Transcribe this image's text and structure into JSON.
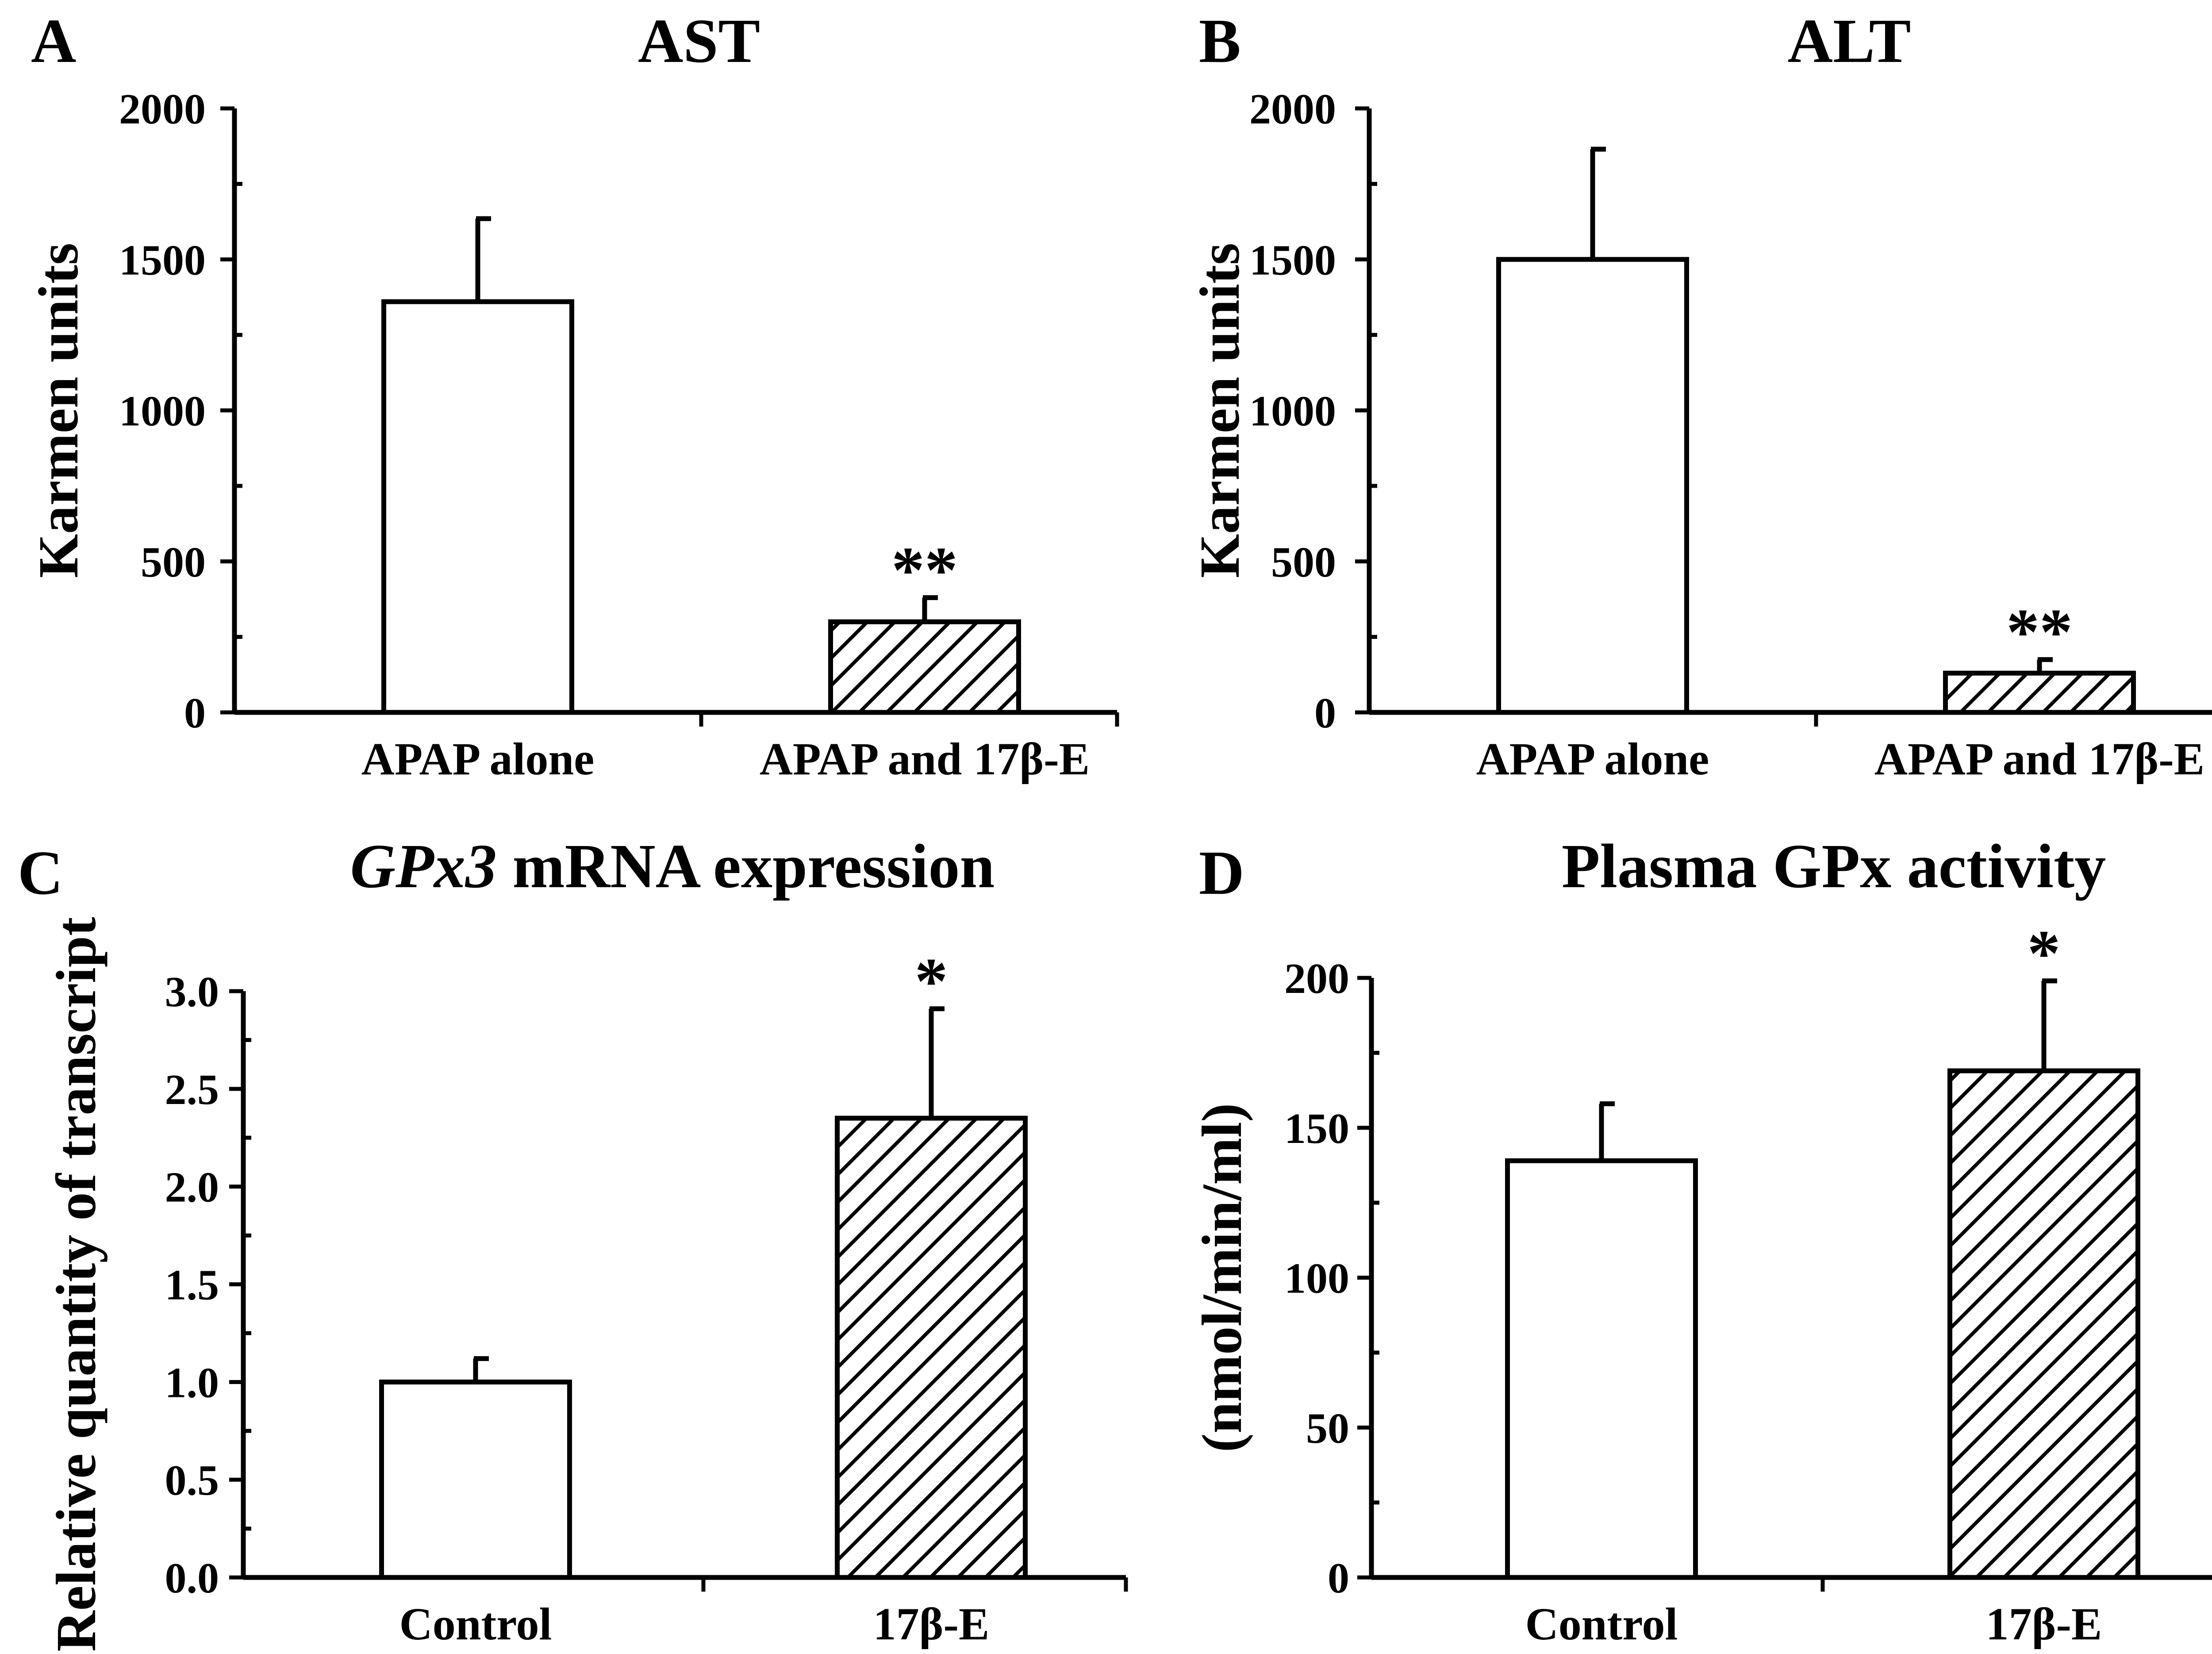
{
  "chart_data": [
    {
      "panel": "A",
      "type": "bar",
      "title": "AST",
      "title_italic": "",
      "ylabel": "Karmen units",
      "xlabel": "",
      "ylim": [
        0,
        2000
      ],
      "yticks": [
        0,
        500,
        1000,
        1500,
        2000
      ],
      "tick_labels": [
        "0",
        "500",
        "1000",
        "1500",
        "2000"
      ],
      "categories": [
        "APAP alone",
        "APAP and 17β-E"
      ],
      "values": [
        1360,
        300
      ],
      "errors": [
        275,
        80
      ],
      "fills": [
        "open",
        "hatched"
      ],
      "significance": [
        "",
        "**"
      ]
    },
    {
      "panel": "B",
      "type": "bar",
      "title": "ALT",
      "title_italic": "",
      "ylabel": "Karmen units",
      "xlabel": "",
      "ylim": [
        0,
        2000
      ],
      "yticks": [
        0,
        500,
        1000,
        1500,
        2000
      ],
      "tick_labels": [
        "0",
        "500",
        "1000",
        "1500",
        "2000"
      ],
      "categories": [
        "APAP alone",
        "APAP and 17β-E"
      ],
      "values": [
        1500,
        130
      ],
      "errors": [
        365,
        45
      ],
      "fills": [
        "open",
        "hatched"
      ],
      "significance": [
        "",
        "**"
      ]
    },
    {
      "panel": "C",
      "type": "bar",
      "title": "mRNA expression",
      "title_italic": "GPx3",
      "ylabel": "Relative quantity of transcript",
      "xlabel": "",
      "ylim": [
        0,
        3.0
      ],
      "yticks": [
        0,
        0.5,
        1.0,
        1.5,
        2.0,
        2.5,
        3.0
      ],
      "tick_labels": [
        "0.0",
        "0.5",
        "1.0",
        "1.5",
        "2.0",
        "2.5",
        "3.0"
      ],
      "categories": [
        "Control",
        "17β-E"
      ],
      "values": [
        1.0,
        2.35
      ],
      "errors": [
        0.12,
        0.56
      ],
      "fills": [
        "open",
        "hatched"
      ],
      "significance": [
        "",
        "*"
      ]
    },
    {
      "panel": "D",
      "type": "bar",
      "title": "Plasma GPx activity",
      "title_italic": "",
      "ylabel": "(nmol/min/ml)",
      "xlabel": "",
      "ylim": [
        0,
        200
      ],
      "yticks": [
        0,
        50,
        100,
        150,
        200
      ],
      "tick_labels": [
        "0",
        "50",
        "100",
        "150",
        "200"
      ],
      "categories": [
        "Control",
        "17β-E"
      ],
      "values": [
        139,
        169
      ],
      "errors": [
        19,
        30
      ],
      "fills": [
        "open",
        "hatched"
      ],
      "significance": [
        "",
        "*"
      ]
    }
  ]
}
